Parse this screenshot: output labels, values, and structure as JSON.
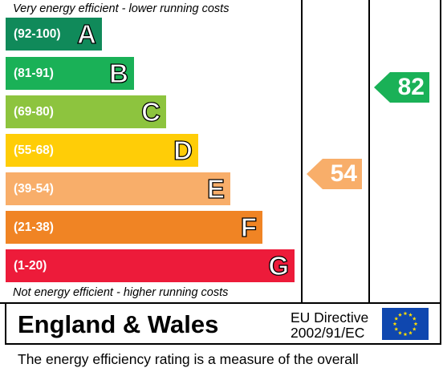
{
  "chart_data": {
    "type": "bar",
    "top_note": "Very energy efficient - lower running costs",
    "bottom_note": "Not energy efficient - higher running costs",
    "bands": [
      {
        "letter": "A",
        "range": "(92-100)",
        "color": "#108a5a"
      },
      {
        "letter": "B",
        "range": "(81-91)",
        "color": "#1ab157"
      },
      {
        "letter": "C",
        "range": "(69-80)",
        "color": "#8dc43e"
      },
      {
        "letter": "D",
        "range": "(55-68)",
        "color": "#ffcd07"
      },
      {
        "letter": "E",
        "range": "(39-54)",
        "color": "#f8ae6a"
      },
      {
        "letter": "F",
        "range": "(21-38)",
        "color": "#f08424"
      },
      {
        "letter": "G",
        "range": "(1-20)",
        "color": "#ed1b3a"
      }
    ],
    "ratings": [
      {
        "value": 54,
        "band": "E",
        "color": "#f8ae6a"
      },
      {
        "value": 82,
        "band": "B",
        "color": "#1ab157"
      }
    ]
  },
  "footer": {
    "region": "England & Wales",
    "directive_line1": "EU Directive",
    "directive_line2": "2002/91/EC"
  },
  "caption_partial": "The energy efficiency rating is a measure of the overall"
}
